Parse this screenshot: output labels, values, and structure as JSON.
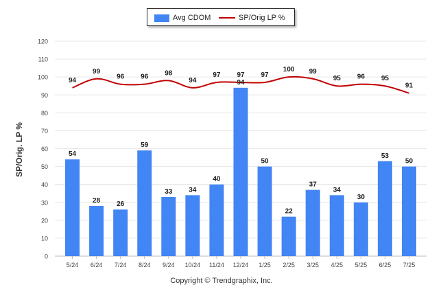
{
  "chart_data": {
    "type": "bar+line",
    "categories": [
      "5/24",
      "6/24",
      "7/24",
      "8/24",
      "9/24",
      "10/24",
      "11/24",
      "12/24",
      "1/25",
      "2/25",
      "3/25",
      "4/25",
      "5/25",
      "6/25",
      "7/25"
    ],
    "series": [
      {
        "name": "Avg CDOM",
        "type": "bar",
        "color": "#4285f4",
        "values": [
          54,
          28,
          26,
          59,
          33,
          34,
          40,
          94,
          50,
          22,
          37,
          34,
          30,
          53,
          50
        ]
      },
      {
        "name": "SP/Orig LP %",
        "type": "line",
        "color": "#c00000",
        "values": [
          94,
          99,
          96,
          96,
          98,
          94,
          97,
          97,
          97,
          100,
          99,
          95,
          96,
          95,
          91
        ]
      }
    ],
    "ylabel": "SP/Orig. LP %",
    "ylim": [
      0,
      120
    ],
    "yticks": [
      0,
      10,
      20,
      30,
      40,
      50,
      60,
      70,
      80,
      90,
      100,
      110,
      120
    ],
    "grid": true,
    "legend": "top-center"
  },
  "legend": {
    "bar_label": "Avg CDOM",
    "line_label": "SP/Orig LP %"
  },
  "footer": "Copyright © Trendgraphix, Inc."
}
